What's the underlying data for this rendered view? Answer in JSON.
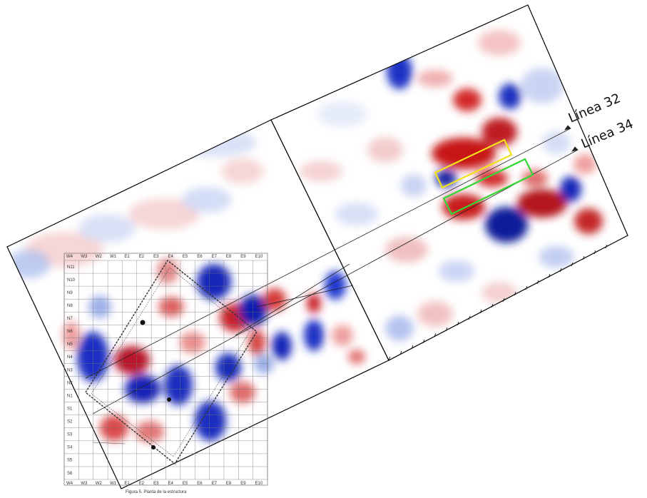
{
  "line_labels": {
    "line_32": "Línea 32",
    "line_34": "Línea 34"
  },
  "plan": {
    "top_columns": [
      "W4",
      "W3",
      "W2",
      "W1",
      "E1",
      "E2",
      "E3",
      "E4",
      "E5",
      "E6",
      "E7",
      "E8",
      "E9",
      "E10"
    ],
    "bottom_columns": [
      "W4",
      "W3",
      "W2",
      "W1",
      "E1",
      "E2",
      "E3",
      "E4",
      "E5",
      "E6",
      "E7",
      "E8",
      "E9",
      "E10"
    ],
    "rows": [
      "N11",
      "N10",
      "N9",
      "N8",
      "N7",
      "N6",
      "N5",
      "N4",
      "N3",
      "N2",
      "N1",
      "S1",
      "S2",
      "S3",
      "S4",
      "S5",
      "S6"
    ],
    "caption": "Figura 5. Planta de la estructura"
  },
  "colors": {
    "positive": "#d0141e",
    "negative": "#0a1fb4",
    "neutral": "#ffffff",
    "box_yellow": "#f2e21a",
    "box_green": "#33d633",
    "frame": "#000000"
  }
}
